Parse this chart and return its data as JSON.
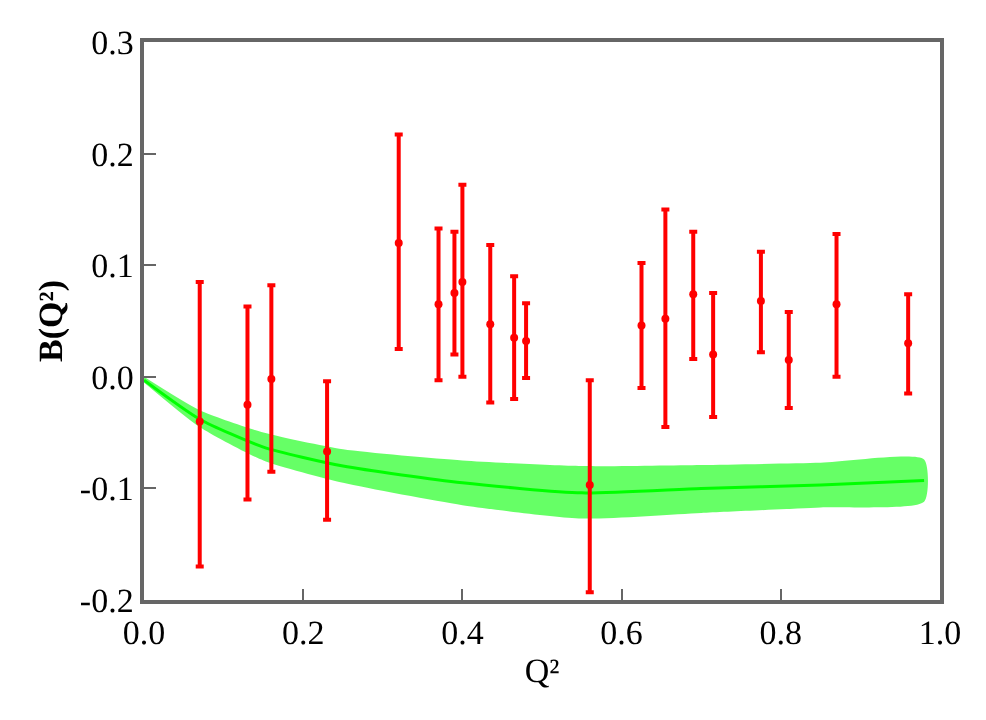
{
  "chart_data": {
    "type": "scatter",
    "xlabel": "Q²",
    "ylabel": "B(Q²)",
    "xlim": [
      0,
      1
    ],
    "ylim": [
      -0.2,
      0.3
    ],
    "xticks": [
      {
        "value": 0,
        "label": "0.0"
      },
      0.2,
      0.4,
      0.6,
      0.8,
      {
        "value": 1,
        "label": "1.0"
      }
    ],
    "yticks": [
      {
        "value": -0.2,
        "label": "-0.2"
      },
      {
        "value": -0.1,
        "label": "-0.1"
      },
      {
        "value": 0,
        "label": "0.0"
      },
      0.1,
      0.2,
      0.3
    ],
    "series": [
      {
        "type": "line",
        "color": "#00ff00",
        "marker": "none",
        "x": [
          0,
          0.07,
          0.15,
          0.25,
          0.4,
          0.55,
          0.7,
          0.85,
          0.98
        ],
        "values": [
          -0.003,
          -0.038,
          -0.063,
          -0.08,
          -0.095,
          -0.104,
          -0.1,
          -0.097,
          -0.093
        ],
        "upper": [
          0,
          -0.03,
          -0.05,
          -0.065,
          -0.075,
          -0.08,
          -0.079,
          -0.077,
          -0.074
        ],
        "lower": [
          -0.005,
          -0.045,
          -0.075,
          -0.095,
          -0.115,
          -0.127,
          -0.122,
          -0.117,
          -0.112
        ]
      },
      {
        "color": "#ff0000",
        "marker": "circle",
        "x": [
          0.07,
          0.13,
          0.16,
          0.23,
          0.32,
          0.37,
          0.39,
          0.4,
          0.435,
          0.465,
          0.48,
          0.56,
          0.625,
          0.655,
          0.69,
          0.715,
          0.775,
          0.81,
          0.87,
          0.96
        ],
        "values": [
          -0.04,
          -0.025,
          -0.002,
          -0.067,
          0.12,
          0.065,
          0.075,
          0.085,
          0.047,
          0.035,
          0.032,
          -0.097,
          0.046,
          0.052,
          0.074,
          0.02,
          0.068,
          0.015,
          0.065,
          0.03
        ],
        "errors": [
          [
            -0.17,
            0.085
          ],
          [
            -0.11,
            0.063
          ],
          [
            -0.085,
            0.082
          ],
          [
            -0.128,
            -0.004
          ],
          [
            0.025,
            0.217
          ],
          [
            -0.003,
            0.133
          ],
          [
            0.02,
            0.13
          ],
          [
            0,
            0.172
          ],
          [
            -0.023,
            0.118
          ],
          [
            -0.02,
            0.09
          ],
          [
            -0.001,
            0.066
          ],
          [
            -0.193,
            -0.003
          ],
          [
            -0.01,
            0.102
          ],
          [
            -0.045,
            0.15
          ],
          [
            0.016,
            0.13
          ],
          [
            -0.036,
            0.075
          ],
          [
            0.022,
            0.112
          ],
          [
            -0.028,
            0.058
          ],
          [
            0,
            0.128
          ],
          [
            -0.015,
            0.074
          ]
        ]
      }
    ]
  }
}
